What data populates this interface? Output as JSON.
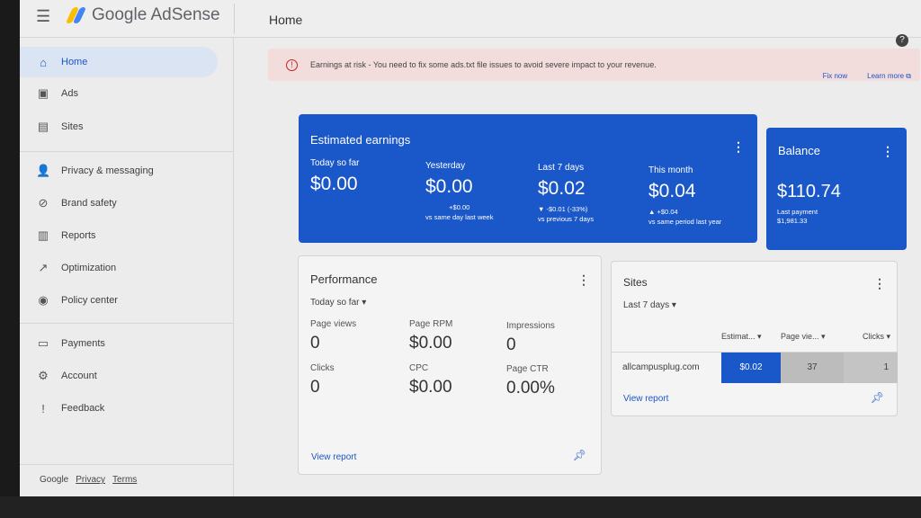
{
  "app": {
    "name": "Google AdSense",
    "page_title": "Home"
  },
  "sidebar": {
    "items": [
      {
        "label": "Home",
        "icon": "home-icon",
        "glyph": "⌂"
      },
      {
        "label": "Ads",
        "icon": "ads-icon",
        "glyph": "▣"
      },
      {
        "label": "Sites",
        "icon": "sites-icon",
        "glyph": "▤"
      },
      {
        "label": "Privacy & messaging",
        "icon": "privacy-icon",
        "glyph": "👤"
      },
      {
        "label": "Brand safety",
        "icon": "brand-safety-icon",
        "glyph": "⊘"
      },
      {
        "label": "Reports",
        "icon": "reports-icon",
        "glyph": "▥"
      },
      {
        "label": "Optimization",
        "icon": "optimization-icon",
        "glyph": "↗"
      },
      {
        "label": "Policy center",
        "icon": "policy-icon",
        "glyph": "◉"
      },
      {
        "label": "Payments",
        "icon": "payments-icon",
        "glyph": "▭"
      },
      {
        "label": "Account",
        "icon": "account-icon",
        "glyph": "⚙"
      },
      {
        "label": "Feedback",
        "icon": "feedback-icon",
        "glyph": "!"
      }
    ],
    "footer": {
      "brand": "Google",
      "privacy": "Privacy",
      "terms": "Terms"
    }
  },
  "alert": {
    "text": "Earnings at risk - You need to fix some ads.txt file issues to avoid severe impact to your revenue.",
    "fix": "Fix now",
    "learn": "Learn more ⧉"
  },
  "earnings": {
    "title": "Estimated earnings",
    "metrics": [
      {
        "label": "Today so far",
        "value": "$0.00",
        "change": "",
        "compare": ""
      },
      {
        "label": "Yesterday",
        "value": "$0.00",
        "change": "+$0.00",
        "compare": "vs same day last week"
      },
      {
        "label": "Last 7 days",
        "value": "$0.02",
        "change": "▼ -$0.01 (-33%)",
        "compare": "vs previous 7 days"
      },
      {
        "label": "This month",
        "value": "$0.04",
        "change": "▲ +$0.04",
        "compare": "vs same period last year"
      }
    ]
  },
  "balance": {
    "title": "Balance",
    "value": "$110.74",
    "last_payment_label": "Last payment",
    "last_payment": "$1,981.33"
  },
  "performance": {
    "title": "Performance",
    "range": "Today so far ▾",
    "metrics": [
      {
        "label": "Page views",
        "value": "0"
      },
      {
        "label": "Page RPM",
        "value": "$0.00"
      },
      {
        "label": "Impressions",
        "value": "0"
      },
      {
        "label": "Clicks",
        "value": "0"
      },
      {
        "label": "CPC",
        "value": "$0.00"
      },
      {
        "label": "Page CTR",
        "value": "0.00%"
      }
    ],
    "view_report": "View report"
  },
  "sites": {
    "title": "Sites",
    "range": "Last 7 days ▾",
    "columns": [
      "Estimat... ▾",
      "Page vie... ▾",
      "Clicks ▾"
    ],
    "rows": [
      {
        "site": "allcampusplug.com",
        "earnings": "$0.02",
        "page_views": "37",
        "clicks": "1"
      }
    ],
    "view_report": "View report"
  },
  "colors": {
    "accent": "#1a57c9",
    "alert_bg": "#f3dcdc"
  }
}
